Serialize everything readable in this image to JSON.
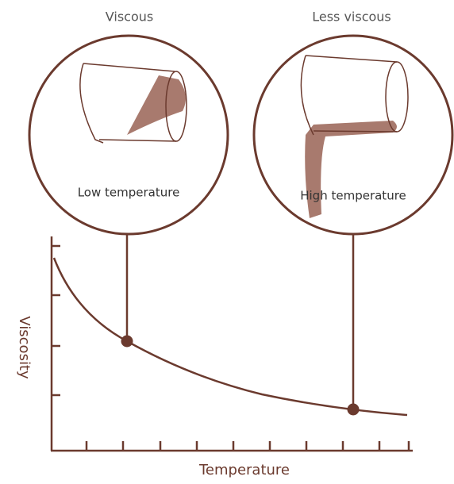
{
  "labels": {
    "left_top": "Viscous",
    "right_top": "Less viscous",
    "left_inner": "Low temperature",
    "right_inner": "High temperature"
  },
  "axes": {
    "y_title": "Viscosity",
    "x_title": "Temperature"
  }
}
